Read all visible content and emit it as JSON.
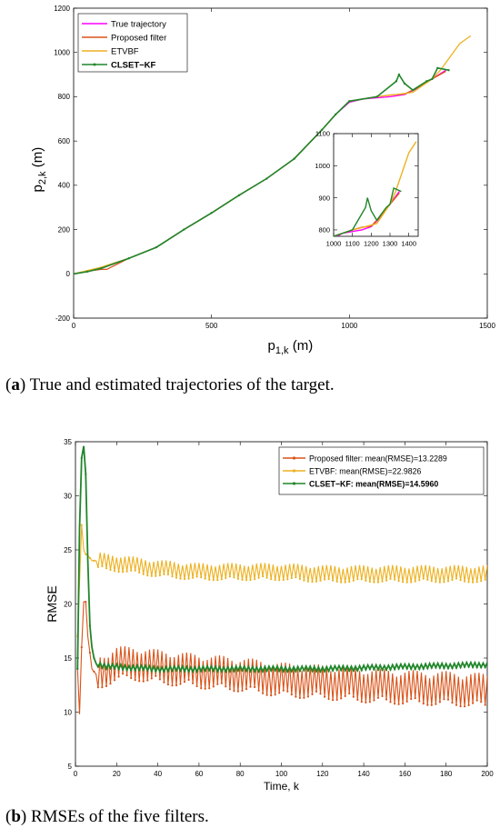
{
  "captions": {
    "a": {
      "letter": "a",
      "text": " True and estimated trajectories of the target."
    },
    "b": {
      "letter": "b",
      "text": " RMSEs of the five filters."
    }
  },
  "chart_data": [
    {
      "type": "line",
      "xlabel": "p",
      "xlabel_sub": "1,k",
      "xlabel_unit": " (m)",
      "ylabel": "p",
      "ylabel_sub": "2,k",
      "ylabel_unit": " (m)",
      "xlim": [
        0,
        1500
      ],
      "ylim": [
        -200,
        1200
      ],
      "xticks": [
        0,
        500,
        1000,
        1500
      ],
      "yticks": [
        -200,
        0,
        200,
        400,
        600,
        800,
        1000,
        1200
      ],
      "legend_position": "top-left",
      "series": [
        {
          "name": "True trajectory",
          "color": "#ff00ff",
          "x": [
            0,
            50,
            100,
            200,
            300,
            400,
            500,
            600,
            700,
            800,
            900,
            950,
            1000,
            1050,
            1100,
            1150,
            1200,
            1250,
            1300,
            1350
          ],
          "y": [
            0,
            10,
            25,
            70,
            120,
            200,
            275,
            355,
            430,
            520,
            650,
            720,
            775,
            790,
            795,
            800,
            810,
            840,
            880,
            920
          ]
        },
        {
          "name": "Proposed filter",
          "color": "#d95319",
          "x": [
            0,
            50,
            100,
            120,
            200,
            300,
            400,
            500,
            600,
            700,
            800,
            900,
            950,
            1000,
            1050,
            1100,
            1150,
            1200,
            1230,
            1300,
            1350
          ],
          "y": [
            0,
            12,
            20,
            20,
            70,
            120,
            200,
            275,
            355,
            430,
            520,
            650,
            720,
            780,
            790,
            800,
            808,
            812,
            830,
            880,
            915
          ]
        },
        {
          "name": "ETVBF",
          "color": "#edb120",
          "x": [
            0,
            50,
            100,
            200,
            300,
            400,
            500,
            600,
            700,
            800,
            900,
            950,
            1000,
            1100,
            1170,
            1230,
            1300,
            1330,
            1400,
            1440
          ],
          "y": [
            0,
            15,
            30,
            70,
            120,
            200,
            275,
            355,
            430,
            520,
            650,
            720,
            780,
            800,
            810,
            820,
            880,
            920,
            1040,
            1075
          ]
        },
        {
          "name": "CLSET−KF",
          "color": "#20862a",
          "x": [
            0,
            50,
            100,
            200,
            300,
            400,
            500,
            600,
            700,
            800,
            900,
            950,
            1000,
            1100,
            1170,
            1180,
            1200,
            1230,
            1280,
            1300,
            1320,
            1360
          ],
          "y": [
            0,
            10,
            25,
            70,
            120,
            200,
            275,
            355,
            430,
            520,
            650,
            720,
            780,
            800,
            870,
            900,
            860,
            830,
            870,
            880,
            930,
            920
          ]
        }
      ],
      "inset": {
        "xlim": [
          1000,
          1450
        ],
        "ylim": [
          780,
          1100
        ],
        "xticks": [
          1000,
          1100,
          1200,
          1300,
          1400
        ],
        "yticks": [
          800,
          900,
          1000,
          1100
        ]
      }
    },
    {
      "type": "line",
      "xlabel": "Time, k",
      "ylabel": "RMSE",
      "xlim": [
        0,
        200
      ],
      "ylim": [
        5,
        35
      ],
      "xticks": [
        0,
        20,
        40,
        60,
        80,
        100,
        120,
        140,
        160,
        180,
        200
      ],
      "yticks": [
        5,
        10,
        15,
        20,
        25,
        30,
        35
      ],
      "legend_position": "top-right",
      "series": [
        {
          "name": "Proposed filter",
          "legend": "Proposed filter: mean(RMSE)=13.2289",
          "color": "#d95319",
          "x": [
            1,
            2,
            3,
            4,
            5,
            6,
            8,
            10,
            15,
            20,
            30,
            40,
            60,
            80,
            100,
            120,
            140,
            160,
            180,
            200
          ],
          "y": [
            14,
            9.8,
            16,
            20.2,
            20.2,
            17,
            14,
            13.5,
            14,
            14.5,
            14.5,
            14.2,
            13.8,
            13.5,
            13,
            12.8,
            12.5,
            12.3,
            12.2,
            12
          ],
          "oscillation": 1.6
        },
        {
          "name": "ETVBF",
          "legend": "ETVBF: mean(RMSE)=22.9826",
          "color": "#edb120",
          "x": [
            1,
            2,
            3,
            4,
            5,
            6,
            8,
            10,
            20,
            40,
            60,
            80,
            100,
            120,
            140,
            160,
            180,
            200
          ],
          "y": [
            17,
            22,
            27.3,
            25,
            24.6,
            24.5,
            24,
            24,
            23.8,
            23.3,
            23,
            23,
            23,
            22.8,
            22.8,
            22.8,
            22.8,
            22.8
          ],
          "oscillation": 0.8
        },
        {
          "name": "CLSET−KF",
          "legend": "CLSET−KF: mean(RMSE)=14.5960",
          "color": "#20862a",
          "x": [
            1,
            2,
            3,
            4,
            5,
            6,
            7,
            8,
            9,
            10,
            15,
            20,
            40,
            60,
            80,
            100,
            120,
            140,
            160,
            180,
            200
          ],
          "y": [
            14,
            27,
            33.5,
            34.6,
            32,
            24,
            18,
            16,
            15,
            14.5,
            14.2,
            14.2,
            14,
            14,
            14,
            14,
            14,
            14.1,
            14.2,
            14.3,
            14.4
          ],
          "oscillation": 0.25
        }
      ]
    }
  ]
}
